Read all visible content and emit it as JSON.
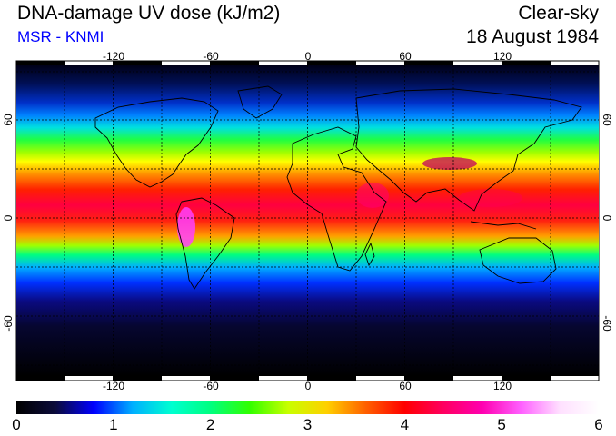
{
  "title": "DNA-damage UV dose (kJ/m2)",
  "credit": "MSR - KNMI",
  "condition": "Clear-sky",
  "date": "18 August 1984",
  "map": {
    "projection": "equirectangular",
    "lon_ticks": [
      "-120",
      "-60",
      "0",
      "60",
      "120"
    ],
    "lat_ticks": [
      "60",
      "0",
      "-60"
    ],
    "grid": "dashed every 30 degrees"
  },
  "colorbar": {
    "labels": [
      "0",
      "1",
      "2",
      "3",
      "4",
      "5",
      "6"
    ],
    "colors": [
      "#000000",
      "#0b0b3a",
      "#0000ff",
      "#00b0ff",
      "#00ffd0",
      "#00ff80",
      "#30ff00",
      "#c8ff00",
      "#ffd000",
      "#ff6000",
      "#ff0000",
      "#ff0060",
      "#ff00b0",
      "#ff60ff",
      "#ffe0ff",
      "#ffffff"
    ]
  }
}
